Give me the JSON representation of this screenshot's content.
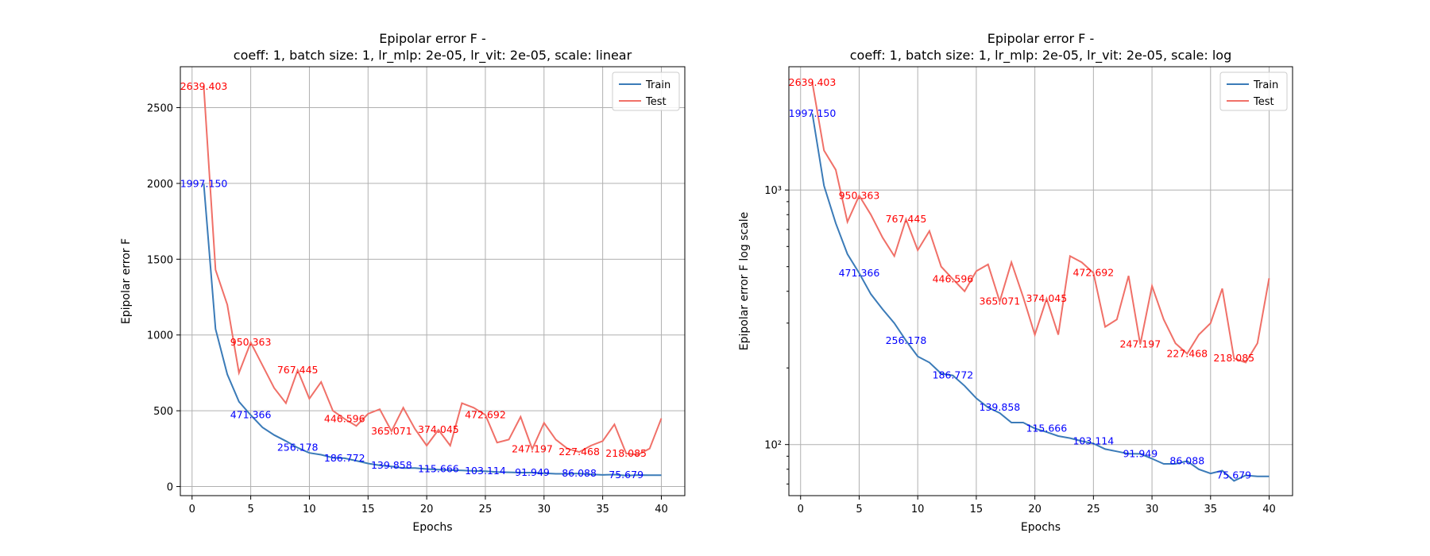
{
  "chart_data": [
    {
      "type": "line",
      "title": "Epipolar error F -\ncoeff: 1, batch size: 1, lr_mlp: 2e-05, lr_vit: 2e-05, scale: linear",
      "xlabel": "Epochs",
      "ylabel": "Epipolar error F",
      "yscale": "linear",
      "xlim": [
        -1,
        42
      ],
      "ylim": [
        -60,
        2770
      ],
      "xticks": [
        0,
        5,
        10,
        15,
        20,
        25,
        30,
        35,
        40
      ],
      "yticks": [
        0,
        500,
        1000,
        1500,
        2000,
        2500
      ],
      "grid": true,
      "legend": "top-right",
      "series": [
        {
          "name": "Train",
          "color": "#3b7bb8",
          "x": [
            1,
            2,
            3,
            4,
            5,
            6,
            7,
            8,
            9,
            10,
            11,
            12,
            13,
            14,
            15,
            16,
            17,
            18,
            19,
            20,
            21,
            22,
            23,
            24,
            25,
            26,
            27,
            28,
            29,
            30,
            31,
            32,
            33,
            34,
            35,
            36,
            37,
            38,
            39,
            40
          ],
          "values": [
            1997.15,
            1040,
            740,
            560,
            471.366,
            390,
            340,
            300,
            256.178,
            222,
            210,
            190,
            186.772,
            170,
            152,
            139.858,
            133,
            122,
            122,
            115.666,
            112,
            108,
            106,
            103.114,
            101,
            96,
            94,
            92,
            91.949,
            88,
            84,
            84,
            86.088,
            80,
            77,
            79,
            72,
            75.679,
            75,
            75
          ]
        },
        {
          "name": "Test",
          "color": "#f07068",
          "x": [
            1,
            2,
            3,
            4,
            5,
            6,
            7,
            8,
            9,
            10,
            11,
            12,
            13,
            14,
            15,
            16,
            17,
            18,
            19,
            20,
            21,
            22,
            23,
            24,
            25,
            26,
            27,
            28,
            29,
            30,
            31,
            32,
            33,
            34,
            35,
            36,
            37,
            38,
            39,
            40
          ],
          "values": [
            2639.403,
            1430,
            1200,
            750,
            950.363,
            800,
            650,
            550,
            767.445,
            580,
            690,
            500,
            446.596,
            400,
            480,
            510,
            365.071,
            520,
            380,
            270,
            374.045,
            270,
            550,
            520,
            472.692,
            290,
            310,
            460,
            247.197,
            420,
            310,
            250,
            227.468,
            270,
            300,
            410,
            218.085,
            210,
            250,
            450
          ]
        }
      ],
      "annotations": [
        {
          "x": 1,
          "y": 2639.403,
          "text": "2639.403",
          "series": "Test"
        },
        {
          "x": 1,
          "y": 1997.15,
          "text": "1997.150",
          "series": "Train"
        },
        {
          "x": 5,
          "y": 950.363,
          "text": "950.363",
          "series": "Test"
        },
        {
          "x": 9,
          "y": 767.445,
          "text": "767.445",
          "series": "Test"
        },
        {
          "x": 13,
          "y": 446.596,
          "text": "446.596",
          "series": "Test"
        },
        {
          "x": 17,
          "y": 365.071,
          "text": "365.071",
          "series": "Test"
        },
        {
          "x": 21,
          "y": 374.045,
          "text": "374.045",
          "series": "Test"
        },
        {
          "x": 25,
          "y": 472.692,
          "text": "472.692",
          "series": "Test"
        },
        {
          "x": 29,
          "y": 247.197,
          "text": "247.197",
          "series": "Test"
        },
        {
          "x": 33,
          "y": 227.468,
          "text": "227.468",
          "series": "Test"
        },
        {
          "x": 37,
          "y": 218.085,
          "text": "218.085",
          "series": "Test"
        },
        {
          "x": 5,
          "y": 471.366,
          "text": "471.366",
          "series": "Train"
        },
        {
          "x": 9,
          "y": 256.178,
          "text": "256.178",
          "series": "Train"
        },
        {
          "x": 13,
          "y": 186.772,
          "text": "186.772",
          "series": "Train"
        },
        {
          "x": 17,
          "y": 139.858,
          "text": "139.858",
          "series": "Train"
        },
        {
          "x": 21,
          "y": 115.666,
          "text": "115.666",
          "series": "Train"
        },
        {
          "x": 25,
          "y": 103.114,
          "text": "103.114",
          "series": "Train"
        },
        {
          "x": 29,
          "y": 91.949,
          "text": "91.949",
          "series": "Train"
        },
        {
          "x": 33,
          "y": 86.088,
          "text": "86.088",
          "series": "Train"
        },
        {
          "x": 37,
          "y": 75.679,
          "text": "75.679",
          "series": "Train"
        }
      ]
    },
    {
      "type": "line",
      "title": "Epipolar error F -\ncoeff: 1, batch size: 1, lr_mlp: 2e-05, lr_vit: 2e-05, scale: log",
      "xlabel": "Epochs",
      "ylabel": "Epipolar error F log scale",
      "yscale": "log",
      "xlim": [
        -1,
        42
      ],
      "ylim": [
        63,
        3050
      ],
      "xticks": [
        0,
        5,
        10,
        15,
        20,
        25,
        30,
        35,
        40
      ],
      "yticks": [
        100,
        1000
      ],
      "ytick_labels": [
        "10²",
        "10³"
      ],
      "grid": true,
      "legend": "top-right",
      "series": [
        {
          "name": "Train",
          "color": "#3b7bb8",
          "x": [
            1,
            2,
            3,
            4,
            5,
            6,
            7,
            8,
            9,
            10,
            11,
            12,
            13,
            14,
            15,
            16,
            17,
            18,
            19,
            20,
            21,
            22,
            23,
            24,
            25,
            26,
            27,
            28,
            29,
            30,
            31,
            32,
            33,
            34,
            35,
            36,
            37,
            38,
            39,
            40
          ],
          "values": [
            1997.15,
            1040,
            740,
            560,
            471.366,
            390,
            340,
            300,
            256.178,
            222,
            210,
            190,
            186.772,
            170,
            152,
            139.858,
            133,
            122,
            122,
            115.666,
            112,
            108,
            106,
            103.114,
            101,
            96,
            94,
            92,
            91.949,
            88,
            84,
            84,
            86.088,
            80,
            77,
            79,
            72,
            75.679,
            75,
            75
          ]
        },
        {
          "name": "Test",
          "color": "#f07068",
          "x": [
            1,
            2,
            3,
            4,
            5,
            6,
            7,
            8,
            9,
            10,
            11,
            12,
            13,
            14,
            15,
            16,
            17,
            18,
            19,
            20,
            21,
            22,
            23,
            24,
            25,
            26,
            27,
            28,
            29,
            30,
            31,
            32,
            33,
            34,
            35,
            36,
            37,
            38,
            39,
            40
          ],
          "values": [
            2639.403,
            1430,
            1200,
            750,
            950.363,
            800,
            650,
            550,
            767.445,
            580,
            690,
            500,
            446.596,
            400,
            480,
            510,
            365.071,
            520,
            380,
            270,
            374.045,
            270,
            550,
            520,
            472.692,
            290,
            310,
            460,
            247.197,
            420,
            310,
            250,
            227.468,
            270,
            300,
            410,
            218.085,
            210,
            250,
            450
          ]
        }
      ],
      "annotations": [
        {
          "x": 1,
          "y": 2639.403,
          "text": "2639.403",
          "series": "Test"
        },
        {
          "x": 1,
          "y": 1997.15,
          "text": "1997.150",
          "series": "Train"
        },
        {
          "x": 5,
          "y": 950.363,
          "text": "950.363",
          "series": "Test"
        },
        {
          "x": 9,
          "y": 767.445,
          "text": "767.445",
          "series": "Test"
        },
        {
          "x": 13,
          "y": 446.596,
          "text": "446.596",
          "series": "Test"
        },
        {
          "x": 17,
          "y": 365.071,
          "text": "365.071",
          "series": "Test"
        },
        {
          "x": 21,
          "y": 374.045,
          "text": "374.045",
          "series": "Test"
        },
        {
          "x": 25,
          "y": 472.692,
          "text": "472.692",
          "series": "Test"
        },
        {
          "x": 29,
          "y": 247.197,
          "text": "247.197",
          "series": "Test"
        },
        {
          "x": 33,
          "y": 227.468,
          "text": "227.468",
          "series": "Test"
        },
        {
          "x": 37,
          "y": 218.085,
          "text": "218.085",
          "series": "Test"
        },
        {
          "x": 5,
          "y": 471.366,
          "text": "471.366",
          "series": "Train"
        },
        {
          "x": 9,
          "y": 256.178,
          "text": "256.178",
          "series": "Train"
        },
        {
          "x": 13,
          "y": 186.772,
          "text": "186.772",
          "series": "Train"
        },
        {
          "x": 17,
          "y": 139.858,
          "text": "139.858",
          "series": "Train"
        },
        {
          "x": 21,
          "y": 115.666,
          "text": "115.666",
          "series": "Train"
        },
        {
          "x": 25,
          "y": 103.114,
          "text": "103.114",
          "series": "Train"
        },
        {
          "x": 29,
          "y": 91.949,
          "text": "91.949",
          "series": "Train"
        },
        {
          "x": 33,
          "y": 86.088,
          "text": "86.088",
          "series": "Train"
        },
        {
          "x": 37,
          "y": 75.679,
          "text": "75.679",
          "series": "Train"
        }
      ]
    }
  ]
}
